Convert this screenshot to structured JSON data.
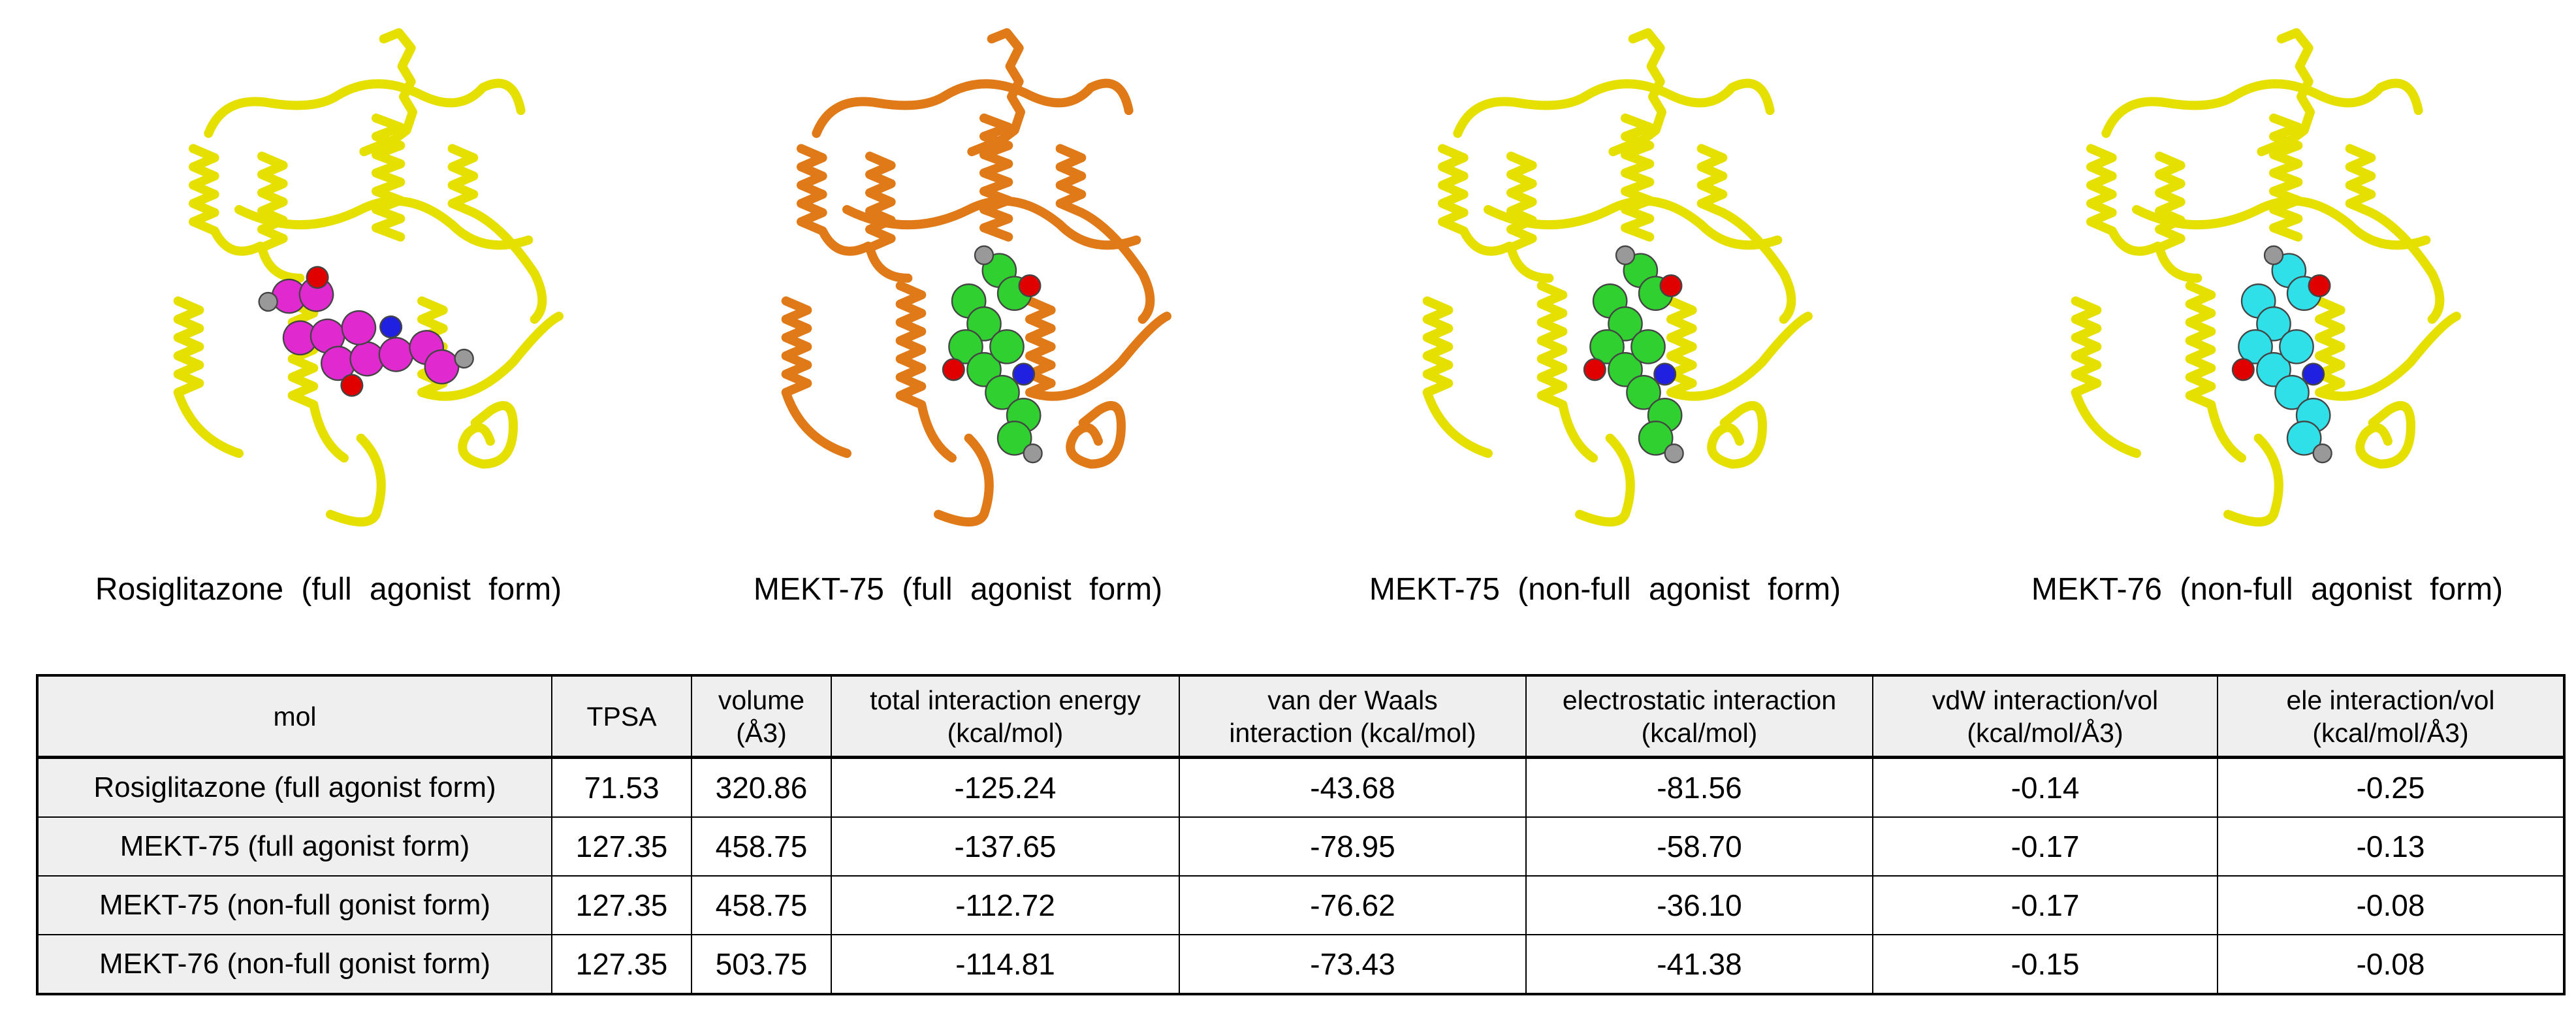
{
  "panels": [
    {
      "caption": "Rosiglitazone (full agonist form)"
    },
    {
      "caption": "MEKT-75 (full agonist form)"
    },
    {
      "caption": "MEKT-75 (non-full agonist form)"
    },
    {
      "caption": "MEKT-76 (non-full agonist form)"
    }
  ],
  "table": {
    "header": [
      [
        "mol"
      ],
      [
        "TPSA"
      ],
      [
        "volume",
        "(Å3)"
      ],
      [
        "total interaction energy",
        "(kcal/mol)"
      ],
      [
        "van der Waals",
        "interaction (kcal/mol)"
      ],
      [
        "electrostatic interaction",
        "(kcal/mol)"
      ],
      [
        "vdW interaction/vol",
        "(kcal/mol/Å3)"
      ],
      [
        "ele interaction/vol",
        "(kcal/mol/Å3)"
      ]
    ],
    "rows": [
      [
        "Rosiglitazone (full agonist form)",
        "71.53",
        "320.86",
        "-125.24",
        "-43.68",
        "-81.56",
        "-0.14",
        "-0.25"
      ],
      [
        "MEKT-75 (full agonist form)",
        "127.35",
        "458.75",
        "-137.65",
        "-78.95",
        "-58.70",
        "-0.17",
        "-0.13"
      ],
      [
        "MEKT-75 (non-full gonist form)",
        "127.35",
        "458.75",
        "-112.72",
        "-76.62",
        "-36.10",
        "-0.17",
        "-0.08"
      ],
      [
        "MEKT-76 (non-full gonist form)",
        "127.35",
        "503.75",
        "-114.81",
        "-73.43",
        "-41.38",
        "-0.15",
        "-0.08"
      ]
    ]
  }
}
